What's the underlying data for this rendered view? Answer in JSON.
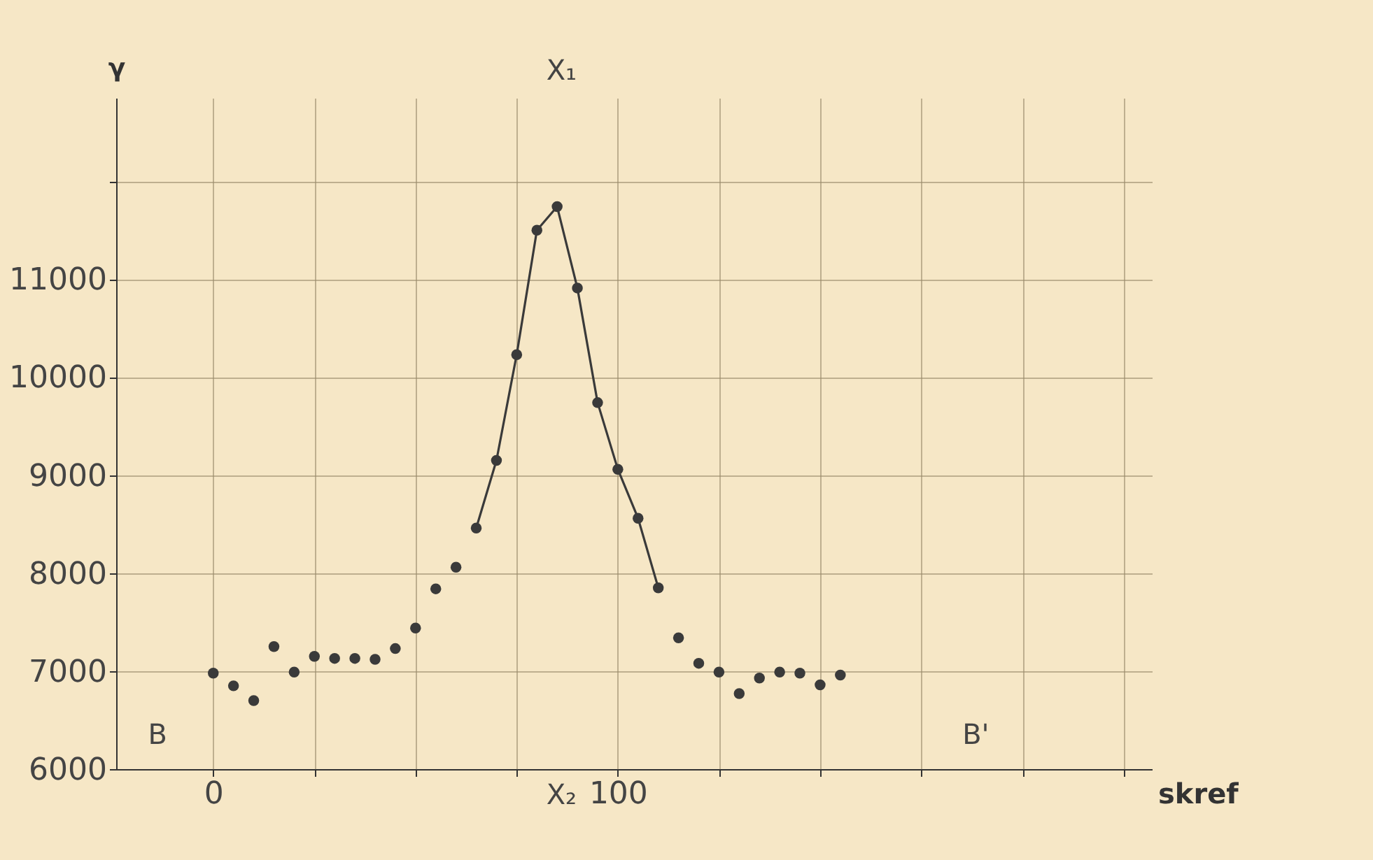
{
  "chart_data": {
    "type": "scatter",
    "xlabel": "skref",
    "ylabel": "γ",
    "series": [
      {
        "color": "#3a3a3a",
        "marker": "circle",
        "x": [
          0,
          5,
          10,
          15,
          20,
          25,
          30,
          35,
          40,
          45,
          50,
          55,
          60,
          65,
          70,
          75,
          80,
          85,
          90,
          95,
          100,
          105,
          110,
          115,
          120,
          125,
          130,
          135,
          140,
          145,
          150,
          155
        ],
        "values": [
          6980,
          6850,
          6700,
          7250,
          6990,
          7150,
          7130,
          7130,
          7120,
          7230,
          7440,
          7840,
          8060,
          8460,
          9150,
          10230,
          11500,
          11740,
          10910,
          9740,
          9060,
          8560,
          7850,
          7340,
          7080,
          6990,
          6770,
          6930,
          6990,
          6980,
          6860,
          6960
        ]
      },
      {
        "type": "line",
        "color": "#3a3a3a",
        "marker": "none",
        "line_style": "solid",
        "x": [
          65,
          70,
          75,
          80,
          85,
          90,
          95,
          100,
          105,
          110
        ],
        "values": [
          8460,
          9150,
          10230,
          11500,
          11740,
          10910,
          9740,
          9060,
          8560,
          7850
        ]
      }
    ],
    "xlim": [
      -24,
      232
    ],
    "ylim": [
      6000,
      12850
    ],
    "xticks": [
      0,
      {
        "value": 25,
        "label": null
      },
      {
        "value": 50,
        "label": null
      },
      {
        "value": 75,
        "label": null
      },
      100,
      {
        "value": 125,
        "label": null
      },
      {
        "value": 150,
        "label": null
      },
      {
        "value": 175,
        "label": null
      },
      {
        "value": 200,
        "label": null
      },
      {
        "value": 225,
        "label": null
      }
    ],
    "yticks": [
      6000,
      7000,
      8000,
      9000,
      10000,
      11000,
      {
        "value": 12000,
        "label": null
      }
    ],
    "grid": true,
    "annotations": [
      "B",
      "B'",
      "X₂",
      "X₁"
    ]
  }
}
